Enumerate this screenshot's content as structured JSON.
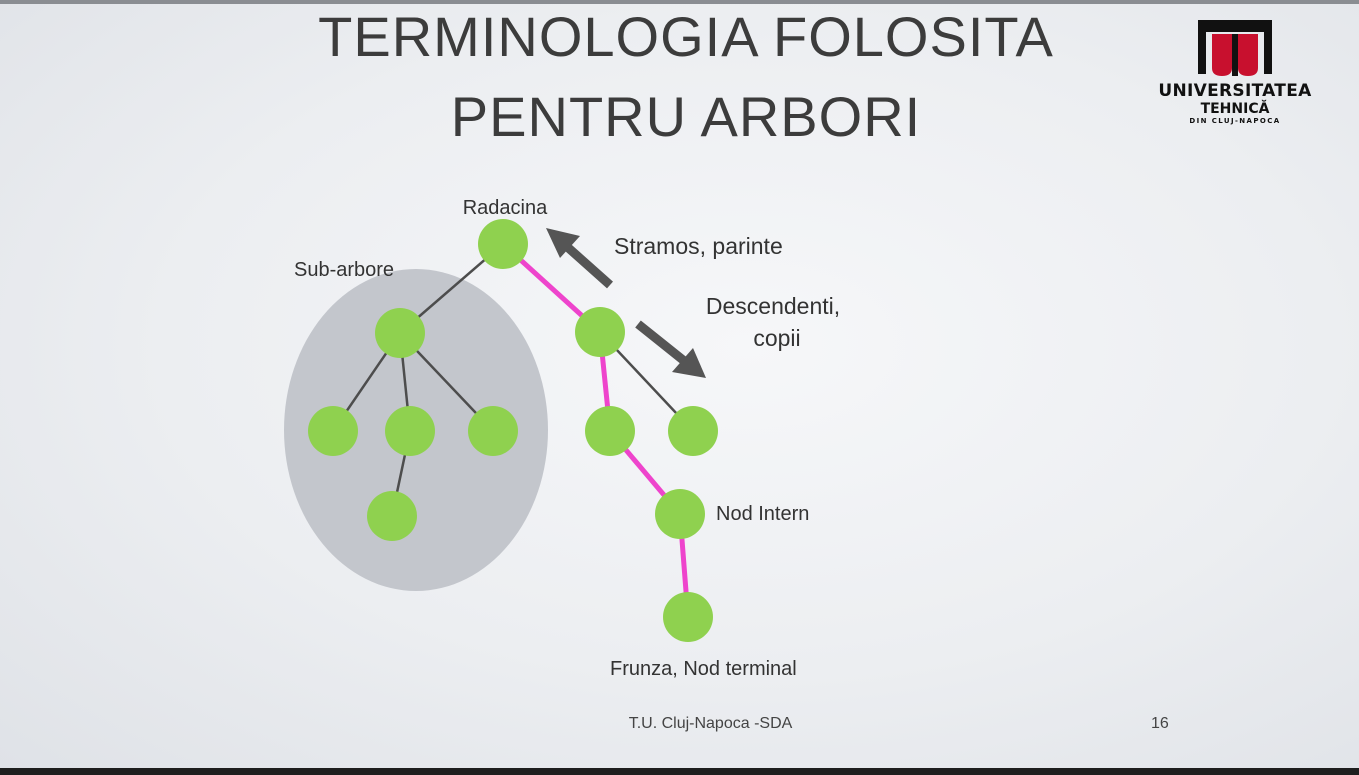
{
  "slide": {
    "title_line_1": "TERMINOLOGIA FOLOSITA",
    "title_line_2": "PENTRU ARBORI",
    "footer": "T.U. Cluj-Napoca -SDA",
    "page_number": "16"
  },
  "logo": {
    "name": "UNIVERSITATEA",
    "sub_1": "TEHNICĂ",
    "sub_2": "DIN CLUJ-NAPOCA",
    "colors": {
      "red": "#c8102e",
      "black": "#111111"
    }
  },
  "diagram": {
    "labels": {
      "root": "Radacina",
      "subtree": "Sub-arbore",
      "ancestor": "Stramos, parinte",
      "descendants_1": "Descendenti,",
      "descendants_2": "copii",
      "internal_node": "Nod Intern",
      "leaf": "Frunza, Nod terminal"
    },
    "colors": {
      "node": "#8fd14f",
      "edge": "#4d4d4d",
      "path_edge": "#ee44cc",
      "subtree_fill": "#c3c6cc",
      "arrow": "#555555"
    }
  }
}
